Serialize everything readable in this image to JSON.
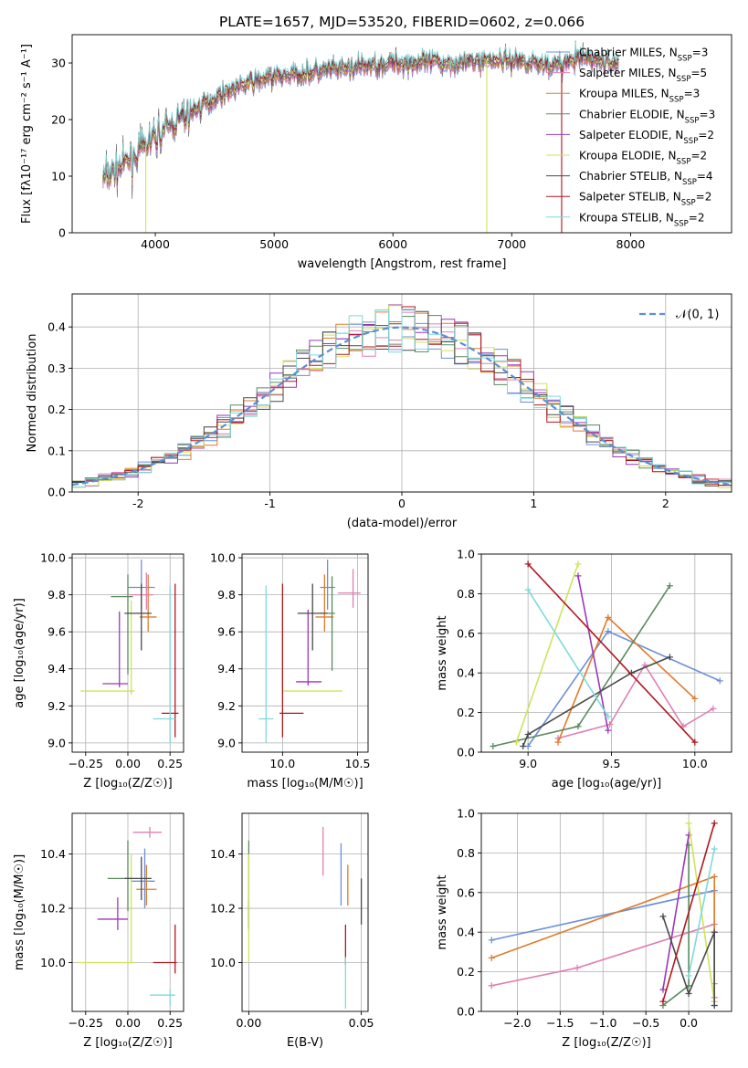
{
  "figure": {
    "title": "PLATE=1657, MJD=53520, FIBERID=0602, z=0.066"
  },
  "series_colors": {
    "Chabrier MILES": "#6b8fd9",
    "Salpeter MILES": "#e07fb5",
    "Kroupa MILES": "#e07b2a",
    "Chabrier ELODIE": "#5b8a5e",
    "Salpeter ELODIE": "#9a37b9",
    "Kroupa ELODIE": "#cfe35a",
    "Chabrier STELIB": "#4a4a4a",
    "Salpeter STELIB": "#b0171f",
    "Kroupa STELIB": "#7fd9dc"
  },
  "chart_data": [
    {
      "id": "spectrum",
      "type": "line",
      "title": "PLATE=1657, MJD=53520, FIBERID=0602, z=0.066",
      "xlabel": "wavelength [Angstrom, rest frame]",
      "ylabel": "Flux [fλ10⁻¹⁷ erg cm⁻² s⁻¹ A⁻¹]",
      "xlim": [
        3300,
        8850
      ],
      "ylim": [
        0,
        35
      ],
      "xticks": [
        4000,
        5000,
        6000,
        7000,
        8000
      ],
      "yticks": [
        0,
        10,
        20,
        30
      ],
      "grid": false,
      "legend_position": "top-right",
      "x": [
        3550,
        3800,
        4000,
        4200,
        4400,
        4600,
        4800,
        5000,
        5200,
        5400,
        5600,
        5800,
        6000,
        6200,
        6400,
        6600,
        6800,
        7000,
        7200,
        7400,
        7600,
        7800
      ],
      "y": [
        9.5,
        13,
        17,
        20,
        22.5,
        25,
        26.5,
        27.5,
        28,
        28.5,
        29,
        29.5,
        30,
        30,
        30,
        30,
        30.5,
        30.5,
        30,
        29.5,
        31,
        30
      ],
      "series": [
        {
          "name": "Chabrier MILES, N",
          "sub": "SSP",
          "suffix": "=3"
        },
        {
          "name": "Salpeter MILES, N",
          "sub": "SSP",
          "suffix": "=5"
        },
        {
          "name": "Kroupa MILES, N",
          "sub": "SSP",
          "suffix": "=3"
        },
        {
          "name": "Chabrier ELODIE, N",
          "sub": "SSP",
          "suffix": "=3"
        },
        {
          "name": "Salpeter ELODIE, N",
          "sub": "SSP",
          "suffix": "=2"
        },
        {
          "name": "Kroupa ELODIE, N",
          "sub": "SSP",
          "suffix": "=2"
        },
        {
          "name": "Chabrier STELIB, N",
          "sub": "SSP",
          "suffix": "=4"
        },
        {
          "name": "Salpeter STELIB, N",
          "sub": "SSP",
          "suffix": "=2"
        },
        {
          "name": "Kroupa STELIB, N",
          "sub": "SSP",
          "suffix": "=2"
        }
      ],
      "drops": [
        {
          "x": 3920,
          "series": "Kroupa ELODIE"
        },
        {
          "x": 6790,
          "series": "Kroupa ELODIE"
        },
        {
          "x": 7420,
          "series": "Salpeter STELIB"
        }
      ]
    },
    {
      "id": "residuals",
      "type": "line",
      "xlabel": "(data-model)/error",
      "ylabel": "Normed distribution",
      "xlim": [
        -2.5,
        2.5
      ],
      "ylim": [
        0,
        0.48
      ],
      "xticks": [
        -2,
        -1,
        0,
        1,
        2
      ],
      "yticks": [
        0.0,
        0.1,
        0.2,
        0.3,
        0.4
      ],
      "grid": true,
      "legend_position": "top-right",
      "legend": "𝒩(0, 1)",
      "reference_curve": "normal(0,1)",
      "bins": {
        "start": -2.5,
        "width": 0.1,
        "count": 50
      }
    },
    {
      "id": "age_vs_Z",
      "type": "scatter",
      "xlabel": "Z [log₁₀(Z/Z☉)]",
      "ylabel": "age  [log₁₀(age/yr)]",
      "xlim": [
        -0.33,
        0.33
      ],
      "ylim": [
        8.95,
        10.02
      ],
      "xticks": [
        -0.25,
        0.0,
        0.25
      ],
      "xticklabels": [
        "−0.25",
        "0.00",
        "0.25"
      ],
      "yticks": [
        9.0,
        9.2,
        9.4,
        9.6,
        9.8,
        10.0
      ],
      "grid": true,
      "points": [
        {
          "series": "Chabrier MILES",
          "x": 0.08,
          "xerr": [
            0.08,
            0.08
          ],
          "y": 9.84,
          "yerr": [
            0.12,
            0.15
          ]
        },
        {
          "series": "Salpeter MILES",
          "x": 0.11,
          "xerr": [
            0.1,
            0.04
          ],
          "y": 9.8,
          "yerr": [
            0.08,
            0.12
          ]
        },
        {
          "series": "Kroupa MILES",
          "x": 0.12,
          "xerr": [
            0.05,
            0.05
          ],
          "y": 9.68,
          "yerr": [
            0.08,
            0.23
          ]
        },
        {
          "series": "Chabrier ELODIE",
          "x": 0.0,
          "xerr": [
            0.1,
            0.03
          ],
          "y": 9.79,
          "yerr": [
            0.42,
            0.12
          ]
        },
        {
          "series": "Salpeter ELODIE",
          "x": -0.05,
          "xerr": [
            0.1,
            0.05
          ],
          "y": 9.32,
          "yerr": [
            0.02,
            0.39
          ]
        },
        {
          "series": "Kroupa ELODIE",
          "x": 0.02,
          "xerr": [
            0.3,
            0.02
          ],
          "y": 9.28,
          "yerr": [
            0.02,
            0.49
          ]
        },
        {
          "series": "Chabrier STELIB",
          "x": 0.08,
          "xerr": [
            0.1,
            0.06
          ],
          "y": 9.7,
          "yerr": [
            0.2,
            0.16
          ]
        },
        {
          "series": "Salpeter STELIB",
          "x": 0.28,
          "xerr": [
            0.08,
            0.02
          ],
          "y": 9.16,
          "yerr": [
            0.13,
            0.7
          ]
        },
        {
          "series": "Kroupa STELIB",
          "x": 0.25,
          "xerr": [
            0.1,
            0.03
          ],
          "y": 9.13,
          "yerr": [
            0.13,
            0.72
          ]
        }
      ]
    },
    {
      "id": "age_vs_mass",
      "type": "scatter",
      "xlabel": "mass [log₁₀(M/M☉)]",
      "ylabel": "",
      "xlim": [
        9.73,
        10.57
      ],
      "ylim": [
        8.95,
        10.02
      ],
      "xticks": [
        10.0,
        10.5
      ],
      "xticklabels": [
        "10.0",
        "10.5"
      ],
      "yticks": [
        9.0,
        9.2,
        9.4,
        9.6,
        9.8,
        10.0
      ],
      "grid": true,
      "points": [
        {
          "series": "Chabrier MILES",
          "x": 10.3,
          "xerr": [
            0.05,
            0.05
          ],
          "y": 9.84,
          "yerr": [
            0.12,
            0.15
          ]
        },
        {
          "series": "Salpeter MILES",
          "x": 10.47,
          "xerr": [
            0.1,
            0.05
          ],
          "y": 9.81,
          "yerr": [
            0.08,
            0.13
          ]
        },
        {
          "series": "Kroupa MILES",
          "x": 10.28,
          "xerr": [
            0.06,
            0.06
          ],
          "y": 9.68,
          "yerr": [
            0.08,
            0.23
          ]
        },
        {
          "series": "Chabrier ELODIE",
          "x": 10.33,
          "xerr": [
            0.08,
            0.02
          ],
          "y": 9.7,
          "yerr": [
            0.31,
            0.2
          ]
        },
        {
          "series": "Salpeter ELODIE",
          "x": 10.17,
          "xerr": [
            0.08,
            0.09
          ],
          "y": 9.33,
          "yerr": [
            0.02,
            0.39
          ]
        },
        {
          "series": "Kroupa ELODIE",
          "x": 10.0,
          "xerr": [
            0.0,
            0.4
          ],
          "y": 9.28,
          "yerr": [
            0.02,
            0.49
          ]
        },
        {
          "series": "Chabrier STELIB",
          "x": 10.2,
          "xerr": [
            0.1,
            0.1
          ],
          "y": 9.7,
          "yerr": [
            0.2,
            0.16
          ]
        },
        {
          "series": "Salpeter STELIB",
          "x": 10.0,
          "xerr": [
            0.02,
            0.14
          ],
          "y": 9.16,
          "yerr": [
            0.13,
            0.7
          ]
        },
        {
          "series": "Kroupa STELIB",
          "x": 9.89,
          "xerr": [
            0.05,
            0.05
          ],
          "y": 9.13,
          "yerr": [
            0.13,
            0.72
          ]
        }
      ]
    },
    {
      "id": "weight_vs_age",
      "type": "line",
      "xlabel": "age  [log₁₀(age/yr)]",
      "ylabel": "mass weight",
      "xlim": [
        8.72,
        10.22
      ],
      "ylim": [
        0.0,
        1.0
      ],
      "xticks": [
        9.0,
        9.5,
        10.0
      ],
      "xticklabels": [
        "9.0",
        "9.5",
        "10.0"
      ],
      "yticks": [
        0.0,
        0.2,
        0.4,
        0.6,
        0.8,
        1.0
      ],
      "grid": true,
      "series": [
        {
          "series": "Chabrier MILES",
          "x": [
            9.0,
            9.48,
            10.15
          ],
          "y": [
            0.03,
            0.61,
            0.36
          ]
        },
        {
          "series": "Salpeter MILES",
          "x": [
            9.18,
            9.49,
            9.7,
            9.93,
            10.11
          ],
          "y": [
            0.07,
            0.14,
            0.44,
            0.13,
            0.22
          ]
        },
        {
          "series": "Kroupa MILES",
          "x": [
            9.18,
            9.48,
            10.0
          ],
          "y": [
            0.05,
            0.68,
            0.27
          ]
        },
        {
          "series": "Chabrier ELODIE",
          "x": [
            8.79,
            9.3,
            9.85
          ],
          "y": [
            0.03,
            0.13,
            0.84
          ]
        },
        {
          "series": "Salpeter ELODIE",
          "x": [
            9.3,
            9.48
          ],
          "y": [
            0.89,
            0.11
          ]
        },
        {
          "series": "Kroupa ELODIE",
          "x": [
            8.93,
            9.3
          ],
          "y": [
            0.05,
            0.95
          ]
        },
        {
          "series": "Chabrier STELIB",
          "x": [
            8.97,
            9.0,
            9.62,
            9.85
          ],
          "y": [
            0.03,
            0.09,
            0.4,
            0.48
          ]
        },
        {
          "series": "Salpeter STELIB",
          "x": [
            9.0,
            10.0
          ],
          "y": [
            0.95,
            0.05
          ]
        },
        {
          "series": "Kroupa STELIB",
          "x": [
            9.0,
            9.48
          ],
          "y": [
            0.82,
            0.18
          ]
        }
      ]
    },
    {
      "id": "mass_vs_Z",
      "type": "scatter",
      "xlabel": "Z [log₁₀(Z/Z☉)]",
      "ylabel": "mass [log₁₀(M/M☉)]",
      "xlim": [
        -0.33,
        0.33
      ],
      "ylim": [
        9.82,
        10.55
      ],
      "xticks": [
        -0.25,
        0.0,
        0.25
      ],
      "xticklabels": [
        "−0.25",
        "0.00",
        "0.25"
      ],
      "yticks": [
        10.0,
        10.2,
        10.4
      ],
      "grid": true,
      "points": [
        {
          "series": "Chabrier MILES",
          "x": 0.1,
          "xerr": [
            0.08,
            0.06
          ],
          "y": 10.3,
          "yerr": [
            0.1,
            0.12
          ]
        },
        {
          "series": "Salpeter MILES",
          "x": 0.13,
          "xerr": [
            0.1,
            0.07
          ],
          "y": 10.48,
          "yerr": [
            0.02,
            0.02
          ]
        },
        {
          "series": "Kroupa MILES",
          "x": 0.11,
          "xerr": [
            0.06,
            0.06
          ],
          "y": 10.27,
          "yerr": [
            0.06,
            0.09
          ]
        },
        {
          "series": "Chabrier ELODIE",
          "x": 0.0,
          "xerr": [
            0.12,
            0.02
          ],
          "y": 10.31,
          "yerr": [
            0.12,
            0.14
          ]
        },
        {
          "series": "Salpeter ELODIE",
          "x": -0.06,
          "xerr": [
            0.12,
            0.06
          ],
          "y": 10.16,
          "yerr": [
            0.04,
            0.08
          ]
        },
        {
          "series": "Kroupa ELODIE",
          "x": 0.02,
          "xerr": [
            0.32,
            0.02
          ],
          "y": 10.0,
          "yerr": [
            0.0,
            0.4
          ]
        },
        {
          "series": "Chabrier STELIB",
          "x": 0.08,
          "xerr": [
            0.1,
            0.06
          ],
          "y": 10.31,
          "yerr": [
            0.08,
            0.08
          ]
        },
        {
          "series": "Salpeter STELIB",
          "x": 0.28,
          "xerr": [
            0.13,
            0.01
          ],
          "y": 10.0,
          "yerr": [
            0.04,
            0.14
          ]
        },
        {
          "series": "Kroupa STELIB",
          "x": 0.25,
          "xerr": [
            0.12,
            0.03
          ],
          "y": 9.88,
          "yerr": [
            0.04,
            0.02
          ]
        }
      ]
    },
    {
      "id": "mass_vs_ebv",
      "type": "scatter",
      "xlabel": "E(B-V)",
      "ylabel": "",
      "xlim": [
        -0.003,
        0.053
      ],
      "ylim": [
        9.82,
        10.55
      ],
      "xticks": [
        0.0,
        0.05
      ],
      "xticklabels": [
        "0.00",
        "0.05"
      ],
      "yticks": [
        10.0,
        10.2,
        10.4
      ],
      "grid": true,
      "points": [
        {
          "series": "Chabrier MILES",
          "x": 0.041,
          "xerr": [
            0,
            0
          ],
          "y": 10.32,
          "yerr": [
            0.11,
            0.12
          ]
        },
        {
          "series": "Salpeter MILES",
          "x": 0.033,
          "xerr": [
            0,
            0
          ],
          "y": 10.41,
          "yerr": [
            0.09,
            0.09
          ]
        },
        {
          "series": "Kroupa MILES",
          "x": 0.044,
          "xerr": [
            0,
            0
          ],
          "y": 10.28,
          "yerr": [
            0.07,
            0.08
          ]
        },
        {
          "series": "Chabrier ELODIE",
          "x": 0.0,
          "xerr": [
            0,
            0
          ],
          "y": 10.3,
          "yerr": [
            0.18,
            0.15
          ]
        },
        {
          "series": "Salpeter ELODIE",
          "x": 0.0,
          "xerr": [
            0,
            0
          ],
          "y": 10.18,
          "yerr": [
            0.05,
            0.05
          ]
        },
        {
          "series": "Kroupa ELODIE",
          "x": 0.0,
          "xerr": [
            0,
            0
          ],
          "y": 10.2,
          "yerr": [
            0.2,
            0.2
          ]
        },
        {
          "series": "Chabrier STELIB",
          "x": 0.05,
          "xerr": [
            0,
            0
          ],
          "y": 10.22,
          "yerr": [
            0.08,
            0.09
          ]
        },
        {
          "series": "Salpeter STELIB",
          "x": 0.043,
          "xerr": [
            0,
            0
          ],
          "y": 10.06,
          "yerr": [
            0.07,
            0.08
          ]
        },
        {
          "series": "Kroupa STELIB",
          "x": 0.043,
          "xerr": [
            0,
            0
          ],
          "y": 9.93,
          "yerr": [
            0.1,
            0.09
          ]
        }
      ]
    },
    {
      "id": "weight_vs_Z",
      "type": "line",
      "xlabel": "Z [log₁₀(Z/Z☉)]",
      "ylabel": "mass weight",
      "xlim": [
        -2.42,
        0.5
      ],
      "ylim": [
        0.0,
        1.0
      ],
      "xticks": [
        -2.0,
        -1.5,
        -1.0,
        -0.5,
        0.0
      ],
      "xticklabels": [
        "−2.0",
        "−1.5",
        "−1.0",
        "−0.5",
        "0.0"
      ],
      "yticks": [
        0.0,
        0.2,
        0.4,
        0.6,
        0.8,
        1.0
      ],
      "grid": true,
      "series": [
        {
          "series": "Chabrier MILES",
          "x": [
            -2.3,
            0.3,
            0.3
          ],
          "y": [
            0.36,
            0.61,
            0.03
          ]
        },
        {
          "series": "Salpeter MILES",
          "x": [
            -2.3,
            -1.3,
            0.3,
            0.3,
            0.3
          ],
          "y": [
            0.13,
            0.22,
            0.44,
            0.14,
            0.07
          ]
        },
        {
          "series": "Kroupa MILES",
          "x": [
            -2.3,
            0.3,
            0.3
          ],
          "y": [
            0.27,
            0.68,
            0.05
          ]
        },
        {
          "series": "Chabrier ELODIE",
          "x": [
            -0.3,
            0.0,
            0.0
          ],
          "y": [
            0.03,
            0.13,
            0.84
          ]
        },
        {
          "series": "Salpeter ELODIE",
          "x": [
            -0.3,
            0.0
          ],
          "y": [
            0.11,
            0.89
          ]
        },
        {
          "series": "Kroupa ELODIE",
          "x": [
            0.0,
            0.3
          ],
          "y": [
            0.95,
            0.05
          ]
        },
        {
          "series": "Chabrier STELIB",
          "x": [
            -0.3,
            0.0,
            0.3,
            0.3
          ],
          "y": [
            0.48,
            0.09,
            0.4,
            0.03
          ]
        },
        {
          "series": "Salpeter STELIB",
          "x": [
            -0.3,
            0.3
          ],
          "y": [
            0.05,
            0.95
          ]
        },
        {
          "series": "Kroupa STELIB",
          "x": [
            0.0,
            0.3
          ],
          "y": [
            0.18,
            0.82
          ]
        }
      ]
    }
  ]
}
